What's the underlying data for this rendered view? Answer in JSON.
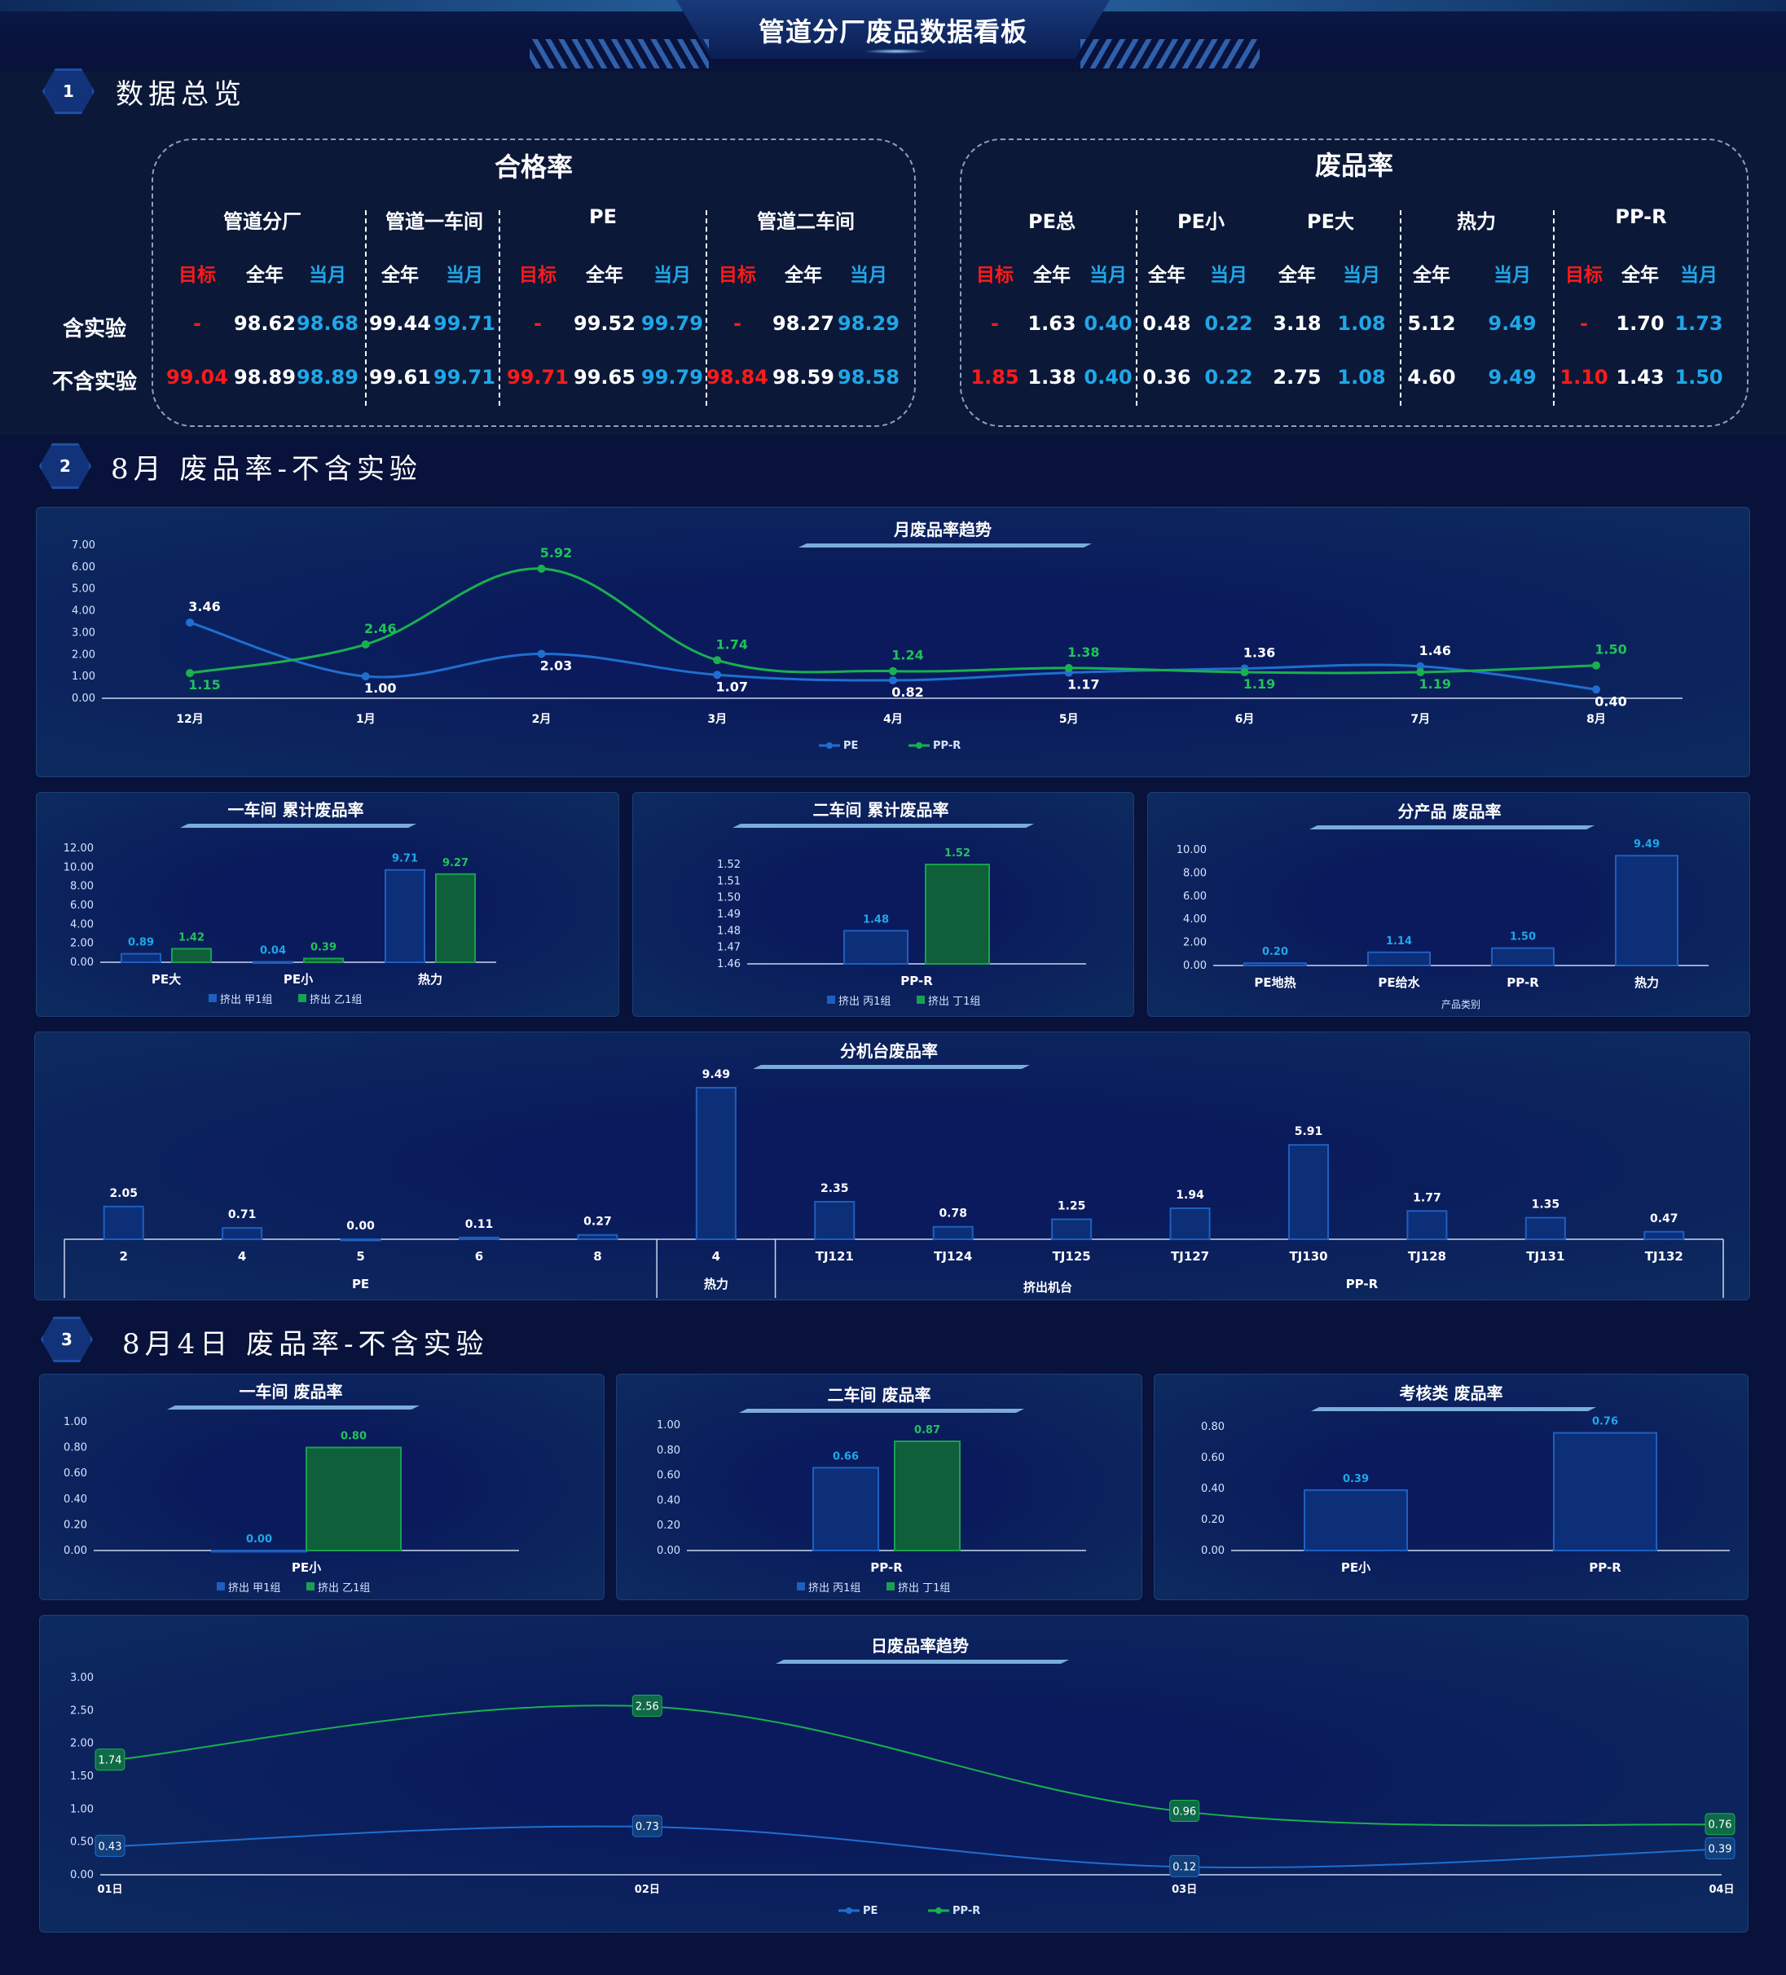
{
  "header": {
    "title": "管道分厂废品数据看板"
  },
  "sections": [
    {
      "num": "1",
      "title": "数据总览"
    },
    {
      "num": "2",
      "title": "8月 废品率-不含实验"
    },
    {
      "num": "3",
      "title": "8月4日 废品率-不含实验"
    }
  ],
  "kpi": {
    "pass_title": "合格率",
    "scrap_title": "废品率",
    "row_labels": [
      "含实验",
      "不含实验"
    ],
    "pass_groups": [
      "管道分厂",
      "管道一车间",
      "PE",
      "管道二车间"
    ],
    "pass_cols": [
      "目标",
      "全年",
      "当月",
      "全年",
      "当月",
      "目标",
      "全年",
      "当月",
      "目标",
      "全年",
      "当月"
    ],
    "pass_rows": [
      [
        "-",
        "98.62",
        "98.68",
        "99.44",
        "99.71",
        "-",
        "99.52",
        "99.79",
        "-",
        "98.27",
        "98.29"
      ],
      [
        "99.04",
        "98.89",
        "98.89",
        "99.61",
        "99.71",
        "99.71",
        "99.65",
        "99.79",
        "98.84",
        "98.59",
        "98.58"
      ]
    ],
    "scrap_groups": [
      "PE总",
      "PE小",
      "PE大",
      "热力",
      "PP-R"
    ],
    "scrap_cols": [
      "目标",
      "全年",
      "当月",
      "全年",
      "当月",
      "全年",
      "当月",
      "全年",
      "当月",
      "目标",
      "全年",
      "当月"
    ],
    "scrap_rows": [
      [
        "-",
        "1.63",
        "0.40",
        "0.48",
        "0.22",
        "3.18",
        "1.08",
        "5.12",
        "9.49",
        "-",
        "1.70",
        "1.73"
      ],
      [
        "1.85",
        "1.38",
        "0.40",
        "0.36",
        "0.22",
        "2.75",
        "1.08",
        "4.60",
        "9.49",
        "1.10",
        "1.43",
        "1.50"
      ]
    ],
    "colors": {
      "target": "#ff1a1a",
      "month": "#1fa7e8",
      "year": "#ffffff"
    }
  },
  "chart_data": [
    {
      "id": "monthly",
      "type": "line",
      "title": "月废品率趋势",
      "categories": [
        "12月",
        "1月",
        "2月",
        "3月",
        "4月",
        "5月",
        "6月",
        "7月",
        "8月"
      ],
      "yticks": [
        "7.00",
        "6.00",
        "5.00",
        "4.00",
        "3.00",
        "2.00",
        "1.00",
        "0.00"
      ],
      "ylim": [
        0,
        7
      ],
      "series": [
        {
          "name": "PE",
          "color": "#1e6fd0",
          "values": [
            3.46,
            1.0,
            2.03,
            1.07,
            0.82,
            1.17,
            1.36,
            1.46,
            0.4
          ],
          "labels": [
            "3.46",
            "1.00",
            "2.03",
            "1.07",
            "0.82",
            "1.17",
            "1.36",
            "1.46",
            "0.40"
          ]
        },
        {
          "name": "PP-R",
          "color": "#19b050",
          "values": [
            1.15,
            2.46,
            5.92,
            1.74,
            1.24,
            1.38,
            1.19,
            1.19,
            1.5
          ],
          "labels": [
            "1.15",
            "2.46",
            "5.92",
            "1.74",
            "1.24",
            "1.38",
            "1.19",
            "1.19",
            "1.50"
          ]
        }
      ]
    },
    {
      "id": "ws1",
      "type": "bar",
      "title": "一车间 累计废品率",
      "categories": [
        "PE大",
        "PE小",
        "热力"
      ],
      "yticks": [
        "12.00",
        "10.00",
        "8.00",
        "6.00",
        "4.00",
        "2.00",
        "0.00"
      ],
      "ylim": [
        0,
        12
      ],
      "series": [
        {
          "name": "挤出 甲1组",
          "color": "#1e5fc0",
          "values": [
            0.89,
            0.04,
            9.71
          ],
          "labels": [
            "0.89",
            "0.04",
            "9.71"
          ]
        },
        {
          "name": "挤出 乙1组",
          "color": "#1aa052",
          "values": [
            1.42,
            0.39,
            9.27
          ],
          "labels": [
            "1.42",
            "0.39",
            "9.27"
          ]
        }
      ]
    },
    {
      "id": "ws2",
      "type": "bar",
      "title": "二车间 累计废品率",
      "categories": [
        "PP-R"
      ],
      "yticks": [
        "1.52",
        "1.51",
        "1.50",
        "1.49",
        "1.48",
        "1.47",
        "1.46"
      ],
      "ylim": [
        1.46,
        1.52
      ],
      "series": [
        {
          "name": "挤出 丙1组",
          "color": "#1e5fc0",
          "values": [
            1.48
          ],
          "labels": [
            "1.48"
          ]
        },
        {
          "name": "挤出 丁1组",
          "color": "#1aa052",
          "values": [
            1.52
          ],
          "labels": [
            "1.52"
          ]
        }
      ]
    },
    {
      "id": "prod",
      "type": "bar",
      "title": "分产品 废品率",
      "categories": [
        "PE地热",
        "PE给水",
        "PP-R",
        "热力"
      ],
      "xlabel": "产品类别",
      "yticks": [
        "10.00",
        "8.00",
        "6.00",
        "4.00",
        "2.00",
        "0.00"
      ],
      "ylim": [
        0,
        10
      ],
      "series": [
        {
          "name": "",
          "color": "#1e5fc0",
          "values": [
            0.2,
            1.14,
            1.5,
            9.49
          ],
          "labels": [
            "0.20",
            "1.14",
            "1.50",
            "9.49"
          ]
        }
      ]
    },
    {
      "id": "machine",
      "type": "bar",
      "title": "分机台废品率",
      "categories": [
        "2",
        "4",
        "5",
        "6",
        "8",
        "4",
        "TJ121",
        "TJ124",
        "TJ125",
        "TJ127",
        "TJ130",
        "TJ128",
        "TJ131",
        "TJ132"
      ],
      "groups": [
        "PE",
        "热力",
        "挤出机台",
        "PP-R"
      ],
      "ylim": [
        0,
        9.49
      ],
      "series": [
        {
          "name": "",
          "color": "#1e5fc0",
          "values": [
            2.05,
            0.71,
            0.0,
            0.11,
            0.27,
            9.49,
            2.35,
            0.78,
            1.25,
            1.94,
            5.91,
            1.77,
            1.35,
            0.47
          ],
          "labels": [
            "2.05",
            "0.71",
            "0.00",
            "0.11",
            "0.27",
            "9.49",
            "2.35",
            "0.78",
            "1.25",
            "1.94",
            "5.91",
            "1.77",
            "1.35",
            "0.47"
          ]
        }
      ]
    },
    {
      "id": "d_ws1",
      "type": "bar",
      "title": "一车间 废品率",
      "categories": [
        "PE小"
      ],
      "yticks": [
        "1.00",
        "0.80",
        "0.60",
        "0.40",
        "0.20",
        "0.00"
      ],
      "ylim": [
        0,
        1
      ],
      "series": [
        {
          "name": "挤出 甲1组",
          "color": "#1e5fc0",
          "values": [
            0.0
          ],
          "labels": [
            "0.00"
          ]
        },
        {
          "name": "挤出 乙1组",
          "color": "#1aa052",
          "values": [
            0.8
          ],
          "labels": [
            "0.80"
          ]
        }
      ]
    },
    {
      "id": "d_ws2",
      "type": "bar",
      "title": "二车间 废品率",
      "categories": [
        "PP-R"
      ],
      "yticks": [
        "1.00",
        "0.80",
        "0.60",
        "0.40",
        "0.20",
        "0.00"
      ],
      "ylim": [
        0,
        1
      ],
      "series": [
        {
          "name": "挤出 丙1组",
          "color": "#1e5fc0",
          "values": [
            0.66
          ],
          "labels": [
            "0.66"
          ]
        },
        {
          "name": "挤出 丁1组",
          "color": "#1aa052",
          "values": [
            0.87
          ],
          "labels": [
            "0.87"
          ]
        }
      ]
    },
    {
      "id": "d_cat",
      "type": "bar",
      "title": "考核类 废品率",
      "categories": [
        "PE小",
        "PP-R"
      ],
      "yticks": [
        "0.80",
        "0.60",
        "0.40",
        "0.20",
        "0.00"
      ],
      "ylim": [
        0,
        0.8
      ],
      "series": [
        {
          "name": "",
          "color": "#1e5fc0",
          "values": [
            0.39,
            0.76
          ],
          "labels": [
            "0.39",
            "0.76"
          ]
        }
      ]
    },
    {
      "id": "daily",
      "type": "line",
      "title": "日废品率趋势",
      "categories": [
        "01日",
        "02日",
        "03日",
        "04日"
      ],
      "yticks": [
        "3.00",
        "2.50",
        "2.00",
        "1.50",
        "1.00",
        "0.50",
        "0.00"
      ],
      "ylim": [
        0,
        3
      ],
      "series": [
        {
          "name": "PE",
          "color": "#1e6fd0",
          "values": [
            0.43,
            0.73,
            0.12,
            0.39
          ],
          "labels": [
            "0.43",
            "0.73",
            "0.12",
            "0.39"
          ]
        },
        {
          "name": "PP-R",
          "color": "#19b050",
          "values": [
            1.74,
            2.56,
            0.96,
            0.76
          ],
          "labels": [
            "1.74",
            "2.56",
            "0.96",
            "0.76"
          ]
        }
      ]
    }
  ]
}
